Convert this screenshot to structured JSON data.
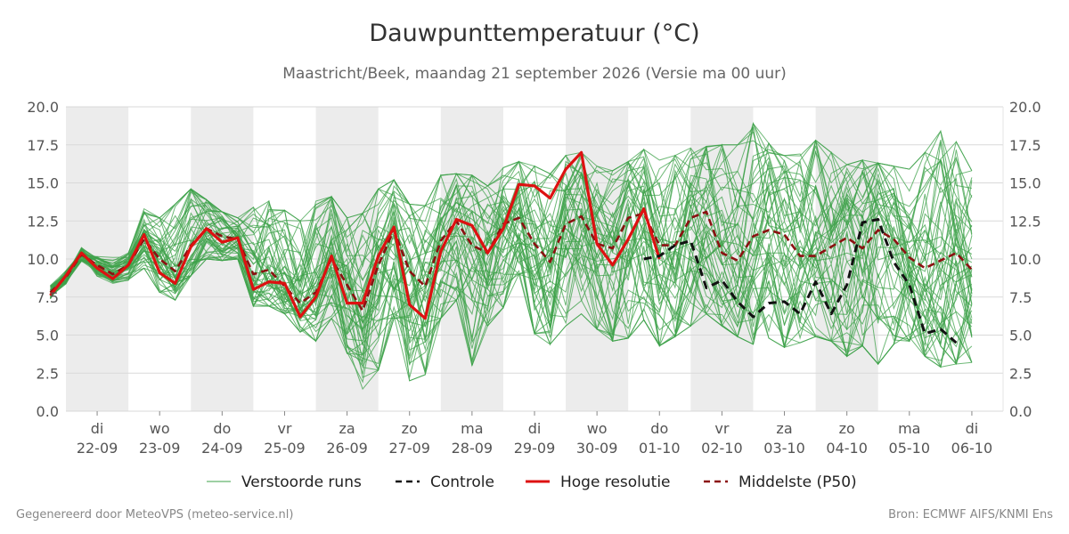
{
  "header": {
    "title": "Dauwpunttemperatuur (°C)",
    "subtitle": "Maastricht/Beek, maandag 21 september 2026 (Versie ma 00 uur)"
  },
  "footer": {
    "left": "Gegenereerd door MeteoVPS (meteo-service.nl)",
    "right": "Bron: ECMWF AIFS/KNMI Ens"
  },
  "chart_data": {
    "type": "line",
    "title": "Dauwpunttemperatuur (°C)",
    "subtitle": "Maastricht/Beek, maandag 21 september 2026 (Versie ma 00 uur)",
    "ylim": [
      0,
      20
    ],
    "yticks": [
      "0.0",
      "2.5",
      "5.0",
      "7.5",
      "10.0",
      "12.5",
      "15.0",
      "17.5",
      "20.0"
    ],
    "xlim_days": [
      0.5,
      15.5
    ],
    "x_ticks": [
      {
        "day": "di",
        "date": "22-09"
      },
      {
        "day": "wo",
        "date": "23-09"
      },
      {
        "day": "do",
        "date": "24-09"
      },
      {
        "day": "vr",
        "date": "25-09"
      },
      {
        "day": "za",
        "date": "26-09"
      },
      {
        "day": "zo",
        "date": "27-09"
      },
      {
        "day": "ma",
        "date": "28-09"
      },
      {
        "day": "di",
        "date": "29-09"
      },
      {
        "day": "wo",
        "date": "30-09"
      },
      {
        "day": "do",
        "date": "01-10"
      },
      {
        "day": "vr",
        "date": "02-10"
      },
      {
        "day": "za",
        "date": "03-10"
      },
      {
        "day": "zo",
        "date": "04-10"
      },
      {
        "day": "ma",
        "date": "05-10"
      },
      {
        "day": "di",
        "date": "06-10"
      }
    ],
    "shaded_days": [
      "22-09",
      "24-09",
      "26-09",
      "28-09",
      "30-09",
      "02-10",
      "04-10"
    ],
    "grid": true,
    "legend_position": "bottom",
    "legend": [
      {
        "label": "Verstoorde runs",
        "color": "#3da14a",
        "style": "solid-thin"
      },
      {
        "label": "Controle",
        "color": "#111111",
        "style": "dashed"
      },
      {
        "label": "Hoge resolutie",
        "color": "#dd1111",
        "style": "solid-thick"
      },
      {
        "label": "Middelste (P50)",
        "color": "#8b1111",
        "style": "dashed"
      }
    ],
    "series": [
      {
        "name": "Hoge resolutie",
        "color": "#dd1111",
        "x_start": 0.25,
        "x_step": 0.25,
        "values": [
          7.6,
          8.9,
          10.4,
          9.4,
          8.7,
          9.6,
          11.6,
          9.1,
          8.4,
          10.8,
          12.0,
          11.1,
          11.4,
          8.0,
          8.5,
          8.4,
          6.2,
          7.5,
          10.2,
          7.1,
          7.1,
          10.2,
          12.1,
          7.0,
          6.1,
          10.5,
          12.6,
          12.2,
          10.4,
          12.0,
          14.9,
          14.8,
          14.0,
          15.9,
          17.0,
          11.0,
          9.6,
          11.3,
          13.3,
          10.0
        ]
      },
      {
        "name": "Middelste (P50)",
        "color": "#8b1111",
        "x_start": 0.25,
        "x_step": 0.25,
        "values": [
          7.8,
          8.8,
          10.3,
          9.6,
          9.0,
          9.6,
          11.3,
          10.0,
          9.2,
          10.9,
          12.0,
          11.5,
          11.3,
          9.0,
          9.3,
          8.2,
          7.1,
          7.8,
          10.0,
          8.3,
          6.6,
          9.6,
          11.9,
          9.2,
          8.2,
          11.2,
          12.5,
          10.9,
          10.4,
          12.3,
          12.7,
          11.0,
          9.8,
          12.3,
          12.8,
          11.0,
          10.7,
          12.7,
          13.0,
          10.9,
          10.9,
          12.7,
          13.1,
          10.4,
          9.9,
          11.5,
          11.9,
          11.6,
          10.2,
          10.2,
          10.8,
          11.4,
          10.7,
          11.9,
          11.3,
          10.1,
          9.4,
          9.9,
          10.4,
          9.3
        ]
      },
      {
        "name": "Controle",
        "color": "#111111",
        "x_start": 9.75,
        "x_step": 0.25,
        "values": [
          10.0,
          10.2,
          10.9,
          11.2,
          8.1,
          8.6,
          7.2,
          6.2,
          7.1,
          7.2,
          6.4,
          8.5,
          6.4,
          8.3,
          12.4,
          12.6,
          9.8,
          8.3,
          5.1,
          5.4,
          4.5
        ]
      }
    ],
    "ensemble": {
      "name": "Verstoorde runs",
      "color": "#3da14a",
      "x_start": 0.25,
      "x_step": 0.25,
      "median": [
        7.8,
        8.8,
        10.3,
        9.6,
        9.0,
        9.6,
        11.3,
        10.0,
        9.2,
        10.9,
        12.0,
        11.5,
        11.3,
        9.0,
        9.3,
        8.2,
        7.1,
        7.8,
        10.0,
        8.3,
        6.6,
        9.6,
        11.9,
        9.2,
        8.2,
        11.2,
        12.5,
        10.9,
        10.4,
        12.3,
        12.7,
        11.0,
        9.8,
        12.3,
        12.8,
        11.0,
        10.7,
        12.7,
        13.0,
        10.9,
        10.9,
        12.7,
        13.1,
        10.4,
        9.9,
        11.5,
        11.9,
        11.6,
        10.2,
        10.2,
        10.8,
        11.4,
        10.7,
        11.9,
        11.3,
        10.1,
        9.4,
        9.9,
        10.4,
        9.3
      ],
      "lower": [
        7.0,
        7.6,
        9.2,
        8.6,
        8.2,
        8.6,
        9.4,
        7.8,
        7.3,
        8.9,
        10.0,
        9.9,
        10.0,
        6.9,
        6.9,
        6.4,
        5.2,
        4.6,
        6.1,
        3.8,
        1.4,
        2.7,
        6.1,
        2.0,
        2.4,
        6.1,
        7.3,
        3.0,
        5.6,
        6.8,
        9.0,
        5.1,
        4.4,
        5.6,
        6.4,
        5.4,
        4.6,
        4.8,
        6.0,
        4.3,
        4.9,
        5.6,
        6.4,
        5.6,
        4.9,
        4.4,
        4.8,
        4.2,
        4.5,
        4.9,
        4.6,
        3.6,
        4.3,
        3.1,
        4.4,
        4.6,
        3.6,
        2.9,
        3.1,
        3.2
      ],
      "upper": [
        8.3,
        9.9,
        11.1,
        10.3,
        10.1,
        10.4,
        13.3,
        12.7,
        13.6,
        14.6,
        13.9,
        13.1,
        12.7,
        13.4,
        13.8,
        13.2,
        12.5,
        13.8,
        14.1,
        12.7,
        13.0,
        14.6,
        15.2,
        13.6,
        13.5,
        15.5,
        15.6,
        15.5,
        14.8,
        16.0,
        16.4,
        16.1,
        15.6,
        16.8,
        17.0,
        16.1,
        15.8,
        16.4,
        17.2,
        16.5,
        16.8,
        17.3,
        17.4,
        17.5,
        17.5,
        18.9,
        17.6,
        16.8,
        16.9,
        17.8,
        17.0,
        16.2,
        16.5,
        16.3,
        16.1,
        15.9,
        17.0,
        18.4,
        17.7,
        15.8
      ]
    },
    "members_drawn": 50
  }
}
